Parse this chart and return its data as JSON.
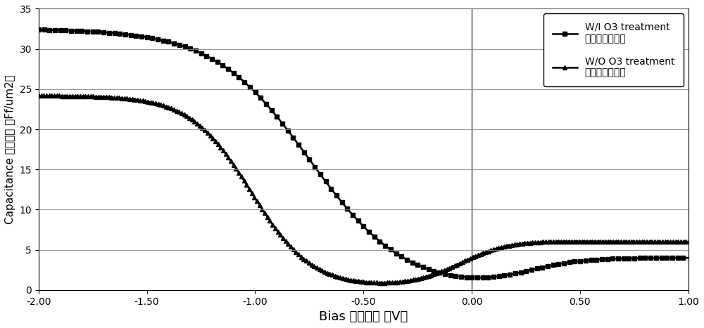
{
  "xlabel_en": "Bias ",
  "xlabel_zh": "（电压）",
  "xlabel_unit": "（V）",
  "ylabel_en": "Capacitance ",
  "ylabel_zh": "（电容）",
  "ylabel_unit": "（Ff/um2）",
  "xlim": [
    -2.0,
    1.0
  ],
  "ylim": [
    0,
    35
  ],
  "yticks": [
    0,
    5,
    10,
    15,
    20,
    25,
    30,
    35
  ],
  "xticks": [
    -2.0,
    -1.5,
    -1.0,
    -0.5,
    0.0,
    0.5,
    1.0
  ],
  "legend1_line": "W/I O3 treatment",
  "legend1_zh": "（实施例数据）",
  "legend2_line": "W/O O3 treatment",
  "legend2_zh": "（对比例数据）",
  "bg_color": "#f5f5f5"
}
